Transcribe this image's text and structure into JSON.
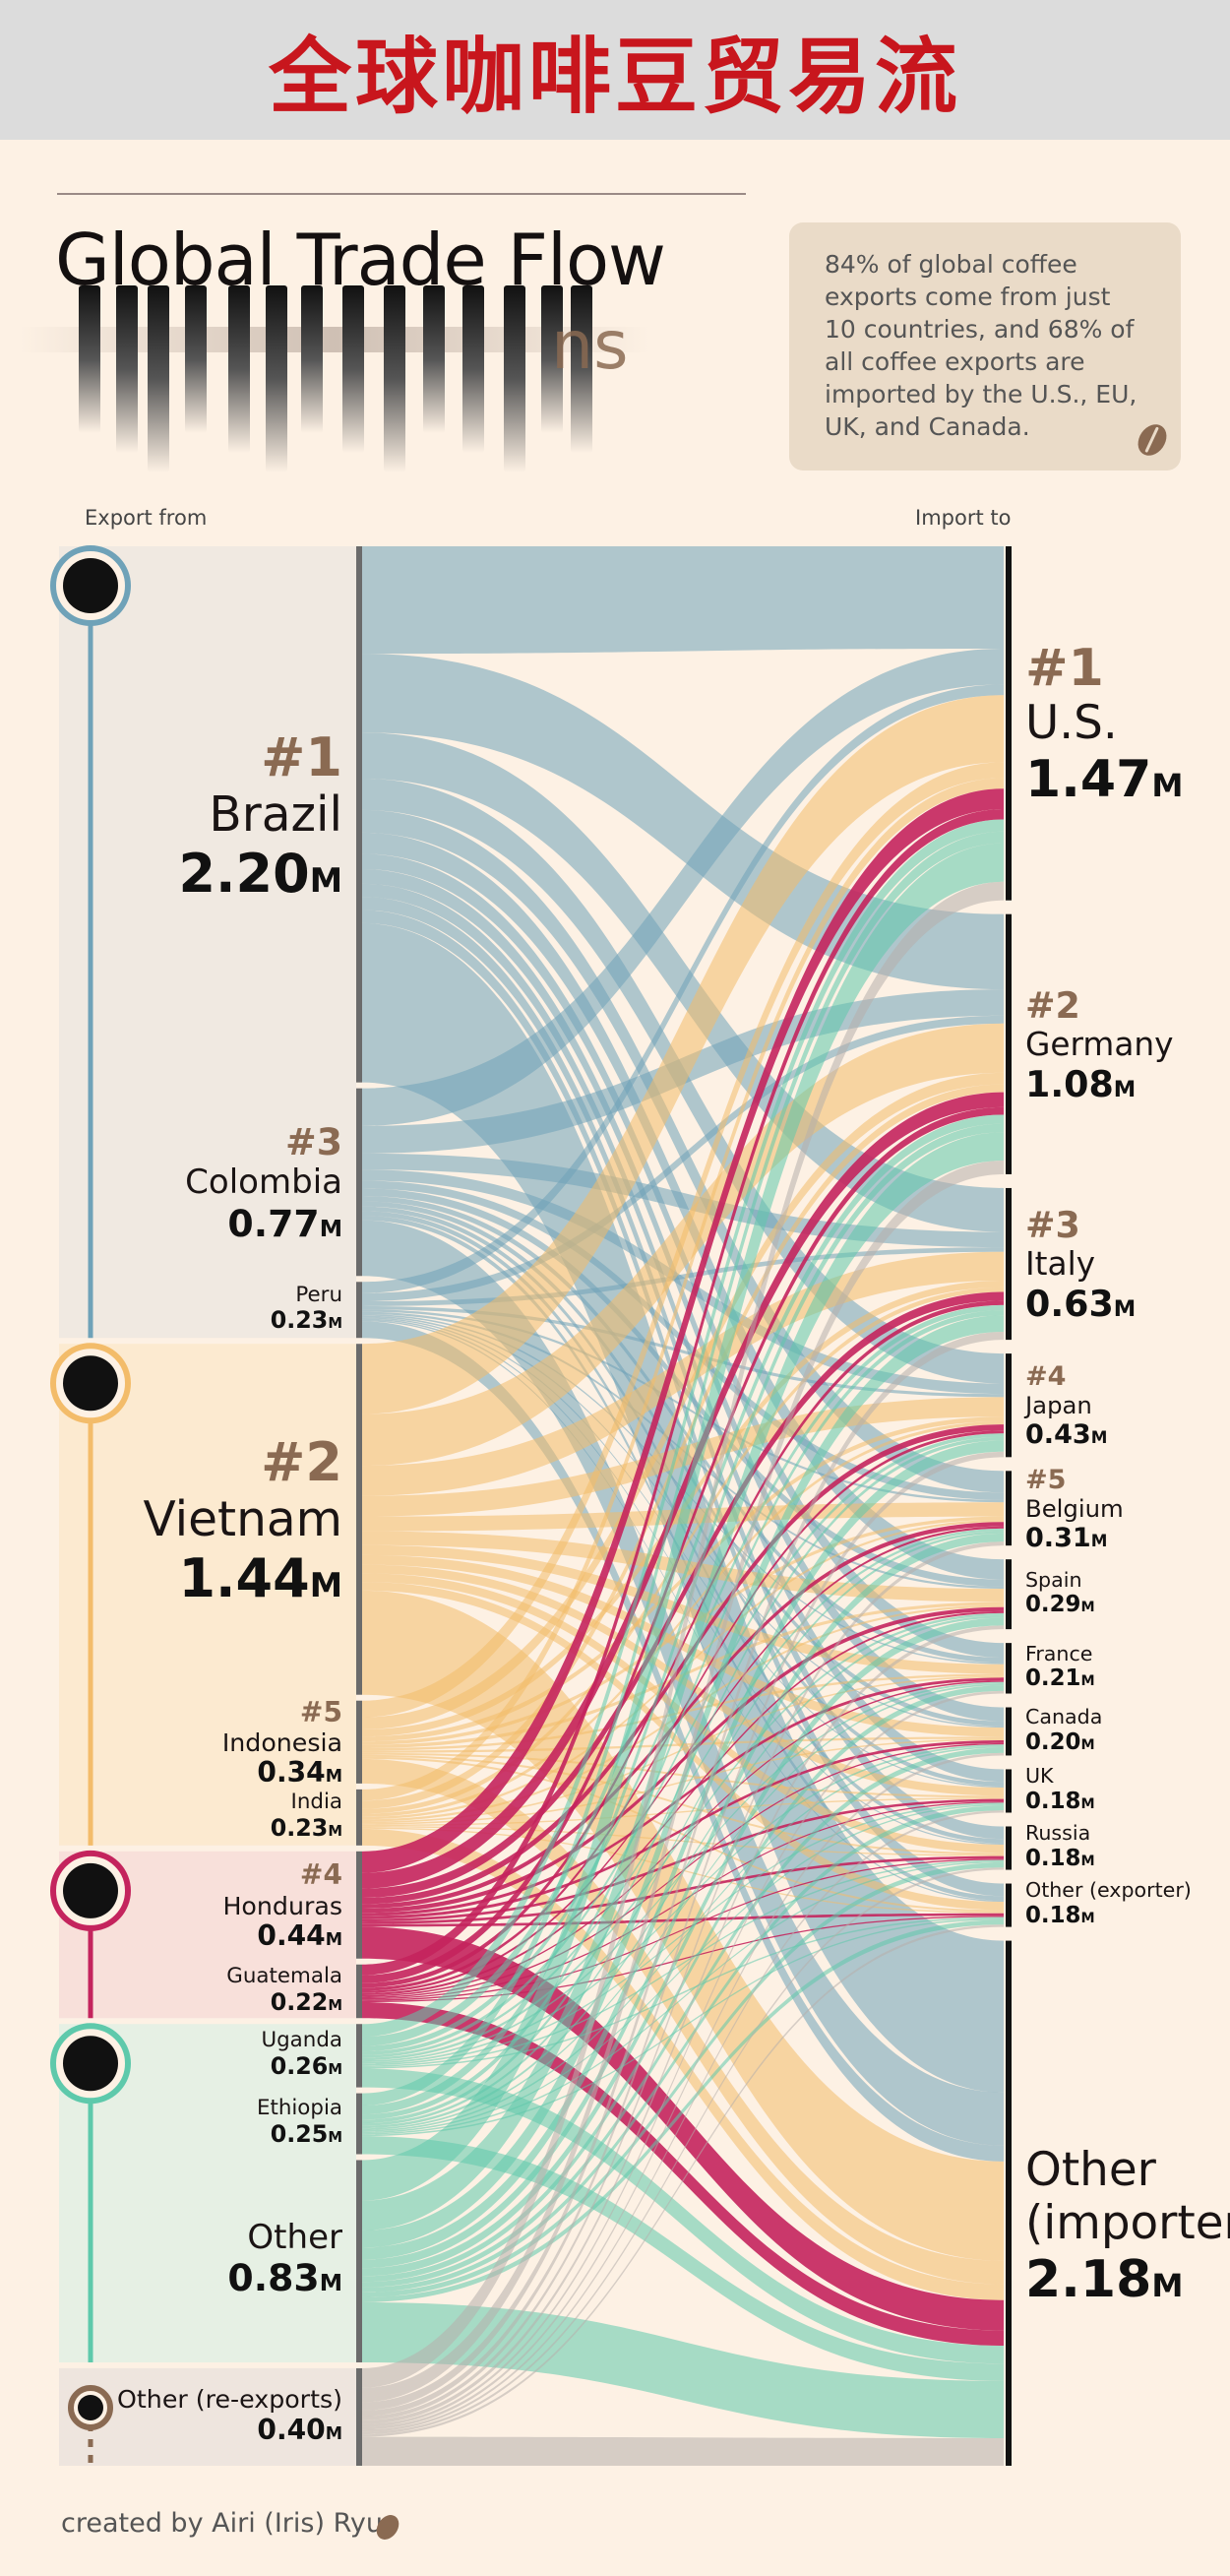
{
  "banner": {
    "title": "全球咖啡豆贸易流"
  },
  "header": {
    "title": "Global Trade Flow",
    "subtitle_fragment": "ns",
    "note": "84% of global coffee exports come from just 10 countries, and 68% of all coffee exports are imported by the U.S., EU, UK, and Canada."
  },
  "axis": {
    "left": "Export from",
    "right": "Import to"
  },
  "footer": {
    "credit": "created by Airi (Iris) Ryu"
  },
  "colors": {
    "americas_south": "#6fa2b8",
    "asia": "#f3bc6a",
    "americas_central": "#c4245d",
    "africa": "#5ec9ab",
    "other": "#b7aeab",
    "rank": "#8a6a52"
  },
  "chart_data": {
    "type": "sankey",
    "title": "Global Trade Flow",
    "unit": "M",
    "exporters": [
      {
        "name": "Brazil",
        "rank": "#1",
        "value": 2.2,
        "region": "americas_south"
      },
      {
        "name": "Colombia",
        "rank": "#3",
        "value": 0.77,
        "region": "americas_south"
      },
      {
        "name": "Peru",
        "rank": "",
        "value": 0.23,
        "region": "americas_south"
      },
      {
        "name": "Vietnam",
        "rank": "#2",
        "value": 1.44,
        "region": "asia"
      },
      {
        "name": "Indonesia",
        "rank": "#5",
        "value": 0.34,
        "region": "asia"
      },
      {
        "name": "India",
        "rank": "",
        "value": 0.23,
        "region": "asia"
      },
      {
        "name": "Honduras",
        "rank": "#4",
        "value": 0.44,
        "region": "americas_central"
      },
      {
        "name": "Guatemala",
        "rank": "",
        "value": 0.22,
        "region": "americas_central"
      },
      {
        "name": "Uganda",
        "rank": "",
        "value": 0.26,
        "region": "africa"
      },
      {
        "name": "Ethiopia",
        "rank": "",
        "value": 0.25,
        "region": "africa"
      },
      {
        "name": "Other",
        "rank": "",
        "value": 0.83,
        "region": "africa"
      },
      {
        "name": "Other (re-exports)",
        "rank": "",
        "value": 0.4,
        "region": "other"
      }
    ],
    "importers": [
      {
        "name": "U.S.",
        "rank": "#1",
        "value": 1.47
      },
      {
        "name": "Germany",
        "rank": "#2",
        "value": 1.08
      },
      {
        "name": "Italy",
        "rank": "#3",
        "value": 0.63
      },
      {
        "name": "Japan",
        "rank": "#4",
        "value": 0.43
      },
      {
        "name": "Belgium",
        "rank": "#5",
        "value": 0.31
      },
      {
        "name": "Spain",
        "rank": "",
        "value": 0.29
      },
      {
        "name": "France",
        "rank": "",
        "value": 0.21
      },
      {
        "name": "Canada",
        "rank": "",
        "value": 0.2
      },
      {
        "name": "UK",
        "rank": "",
        "value": 0.18
      },
      {
        "name": "Russia",
        "rank": "",
        "value": 0.18
      },
      {
        "name": "Other (exporter)",
        "rank": "",
        "value": 0.18
      },
      {
        "name": "Other (importer)",
        "rank": "",
        "value": 2.18
      }
    ]
  }
}
